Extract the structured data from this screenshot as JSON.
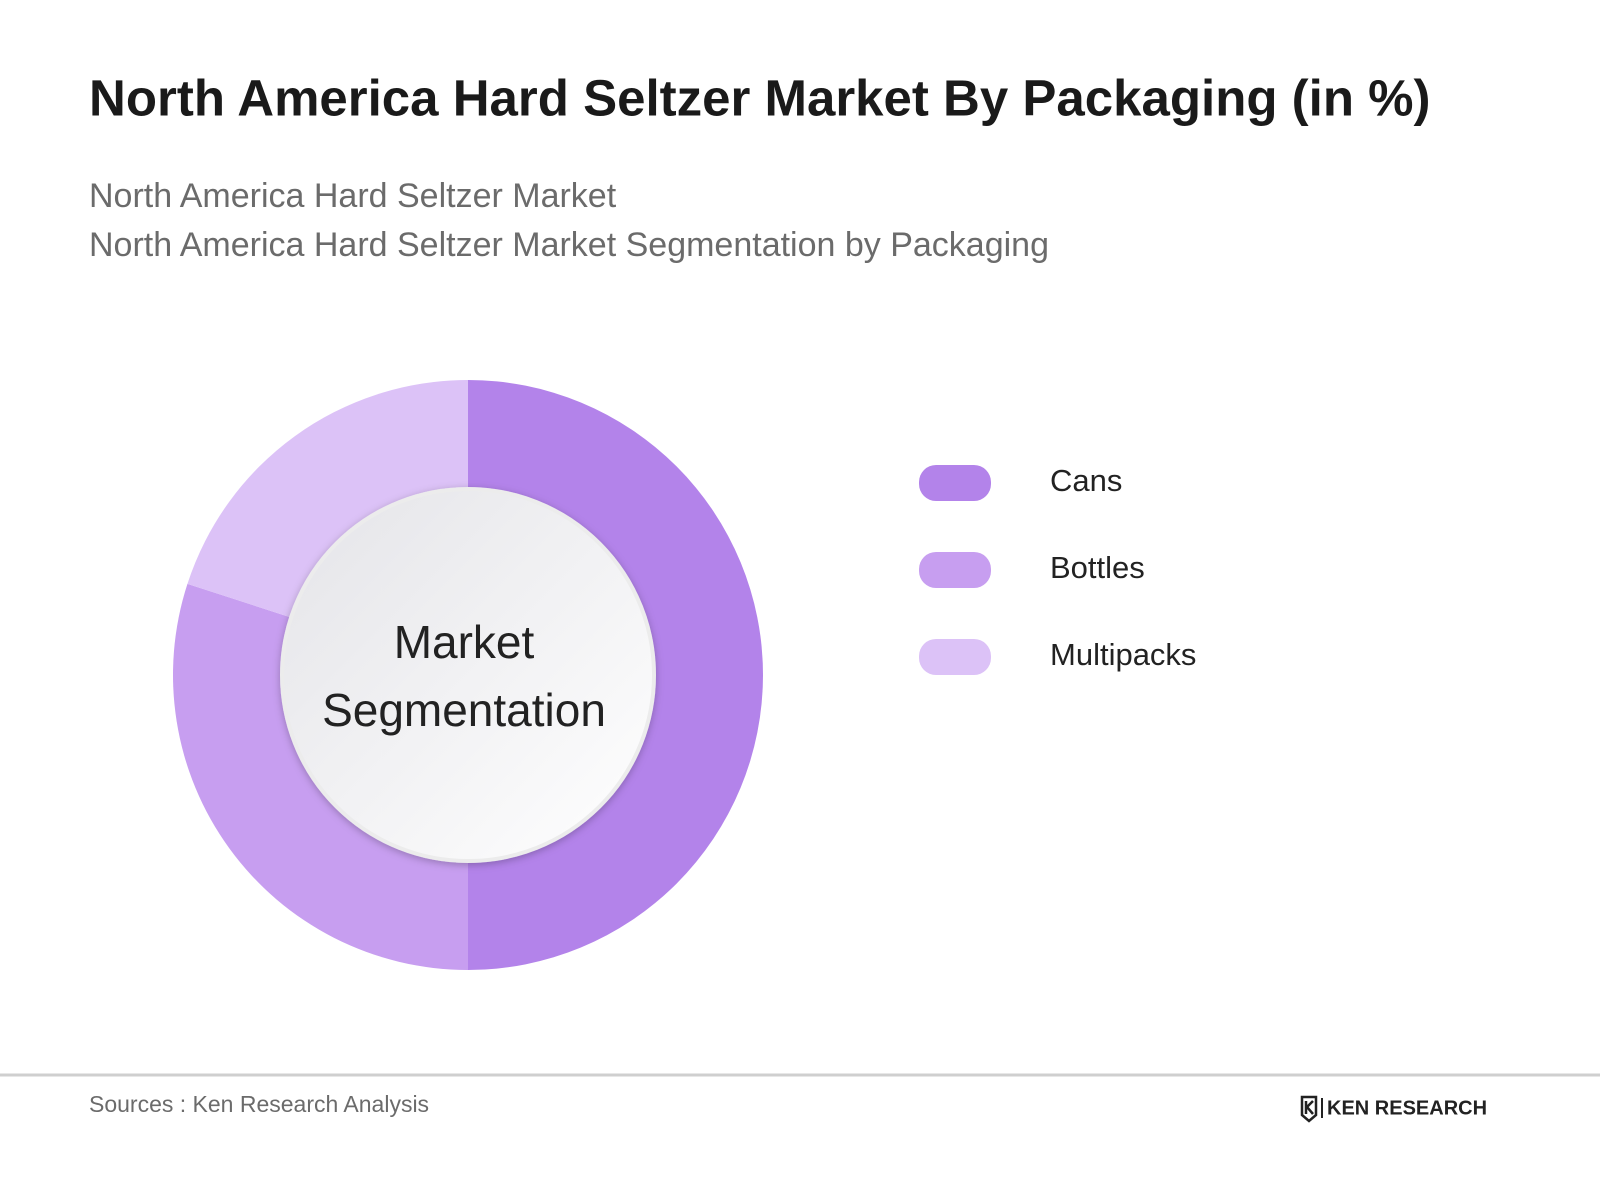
{
  "chart_data": {
    "type": "pie",
    "title": "North America Hard Seltzer Market By Packaging (in %)",
    "subtitle": [
      "North America Hard Seltzer Market",
      "North America Hard Seltzer Market Segmentation by Packaging"
    ],
    "center_label": [
      "Market",
      "Segmentation"
    ],
    "categories": [
      "Cans",
      "Bottles",
      "Multipacks"
    ],
    "values": [
      50,
      30,
      20
    ],
    "colors": [
      "#b383ea",
      "#c79ef0",
      "#dcc2f7"
    ],
    "source": "Sources : Ken Research Analysis",
    "brand": "KEN RESEARCH"
  }
}
